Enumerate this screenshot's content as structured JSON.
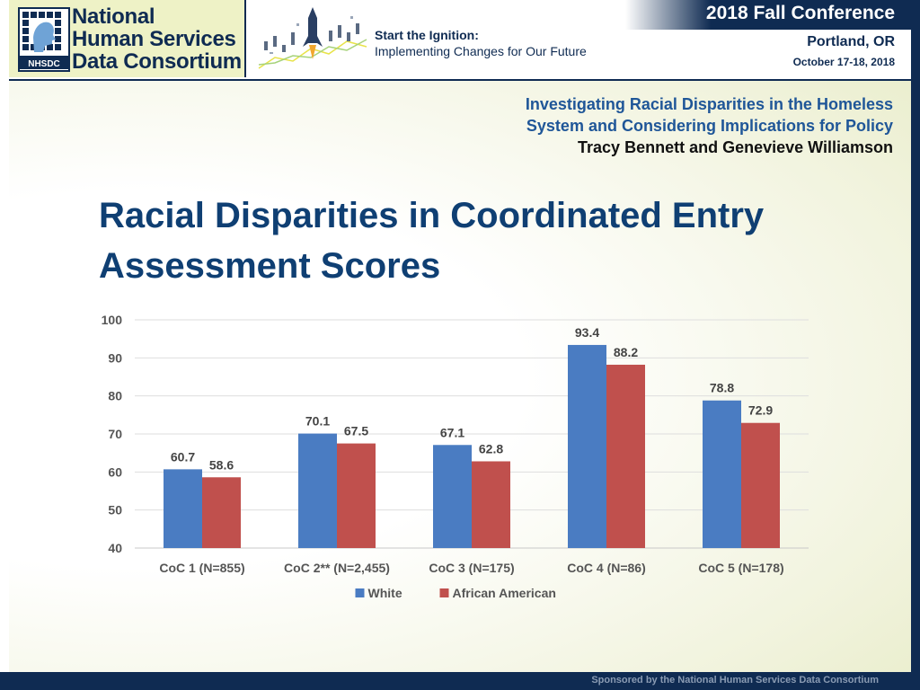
{
  "header": {
    "logo_lines": [
      "National",
      "Human Services",
      "Data Consortium"
    ],
    "logo_emblem_label": "NHSDC",
    "tagline_line1": "Start the Ignition:",
    "tagline_line2": "Implementing Changes for Our Future",
    "conference_title": "2018 Fall Conference",
    "conference_city": "Portland, OR",
    "conference_dates": "October 17-18, 2018"
  },
  "session": {
    "title_line1": "Investigating Racial Disparities in the Homeless",
    "title_line2": "System and Considering Implications for Policy",
    "authors": "Tracy Bennett and Genevieve Williamson"
  },
  "slide_title": "Racial Disparities in Coordinated Entry Assessment Scores",
  "footer": {
    "text": "Sponsored by the National Human Services Data Consortium"
  },
  "colors": {
    "white_series": "#4a7cc2",
    "african_american_series": "#c0504d",
    "navy": "#0f2b52",
    "title_blue": "#0f3f73"
  },
  "chart_data": {
    "type": "bar",
    "title": "",
    "xlabel": "",
    "ylabel": "",
    "categories": [
      "CoC 1 (N=855)",
      "CoC 2** (N=2,455)",
      "CoC 3 (N=175)",
      "CoC 4 (N=86)",
      "CoC 5 (N=178)"
    ],
    "series": [
      {
        "name": "White",
        "values": [
          60.7,
          70.1,
          67.1,
          93.4,
          78.8
        ],
        "color": "#4a7cc2"
      },
      {
        "name": "African American",
        "values": [
          58.6,
          67.5,
          62.8,
          88.2,
          72.9
        ],
        "color": "#c0504d"
      }
    ],
    "ylim": [
      40,
      100
    ],
    "yticks": [
      40,
      50,
      60,
      70,
      80,
      90,
      100
    ],
    "grid": true,
    "legend_position": "bottom"
  }
}
